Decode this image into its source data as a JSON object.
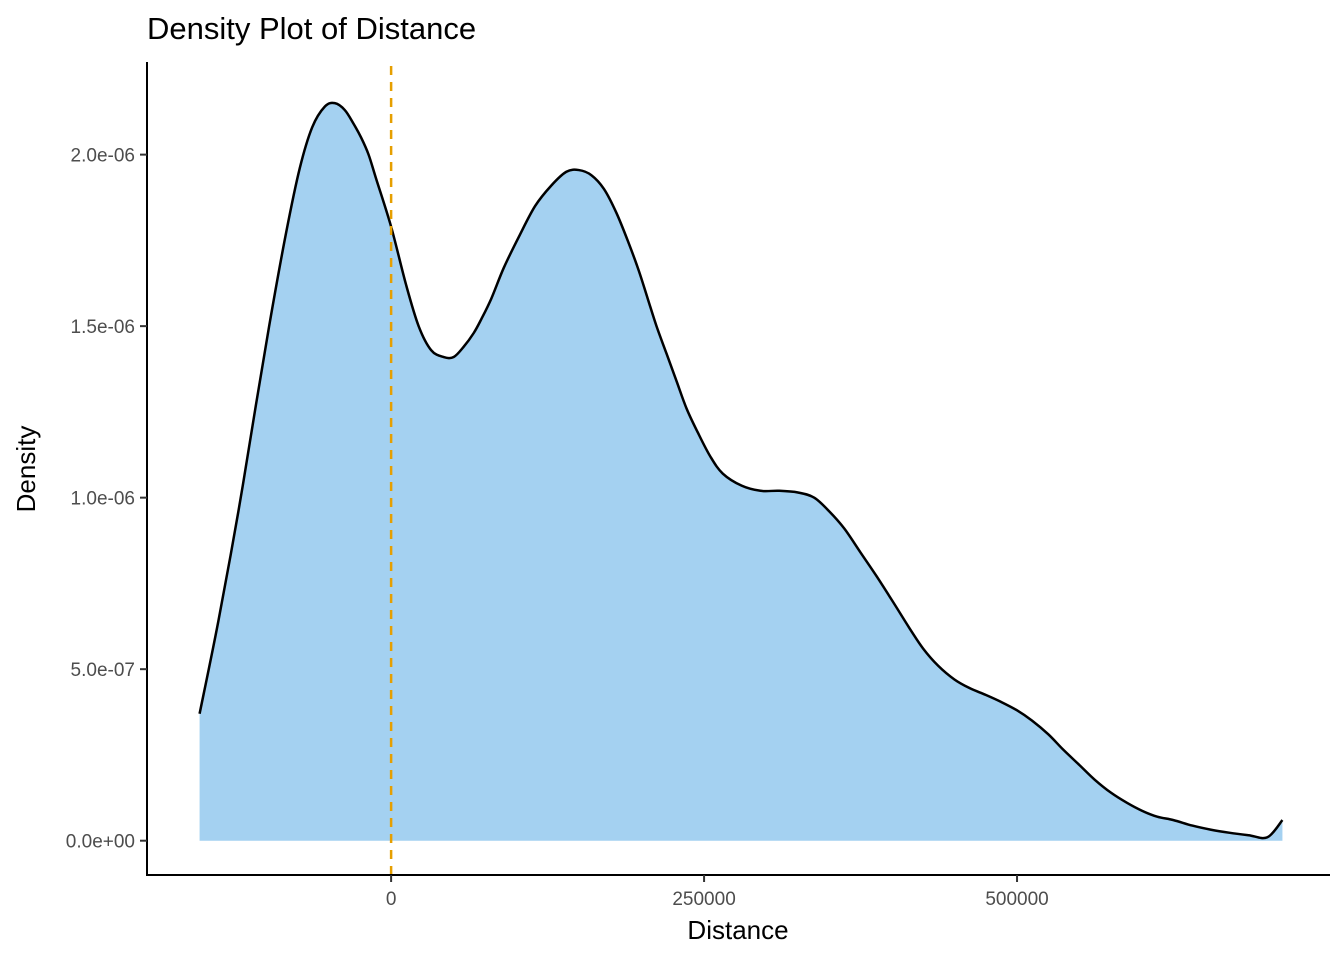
{
  "chart_data": {
    "type": "area",
    "title": "Density Plot of Distance",
    "xlabel": "Distance",
    "ylabel": "Density",
    "xlim": [
      -195000,
      750000
    ],
    "ylim": [
      -1e-07,
      2.27e-06
    ],
    "x_ticks": [
      0,
      250000,
      500000
    ],
    "x_tick_labels": [
      "0",
      "250000",
      "500000"
    ],
    "y_ticks": [
      0,
      5e-07,
      1e-06,
      1.5e-06,
      2e-06
    ],
    "y_tick_labels": [
      "0.0e+00",
      "5.0e-07",
      "1.0e-06",
      "1.5e-06",
      "2.0e-06"
    ],
    "grid": false,
    "series": [
      {
        "fill_color": "#a4d1f1",
        "line_color": "#000000",
        "x": [
          -153000,
          -138000,
          -122000,
          -108000,
          -96000,
          -84000,
          -73000,
          -63000,
          -53000,
          -45000,
          -37000,
          -30000,
          -24000,
          -18000,
          -12000,
          0,
          12000,
          22000,
          32000,
          42000,
          50000,
          58000,
          66000,
          72000,
          80000,
          90000,
          102000,
          115000,
          128000,
          140000,
          150000,
          160000,
          170000,
          180000,
          190000,
          198000,
          205000,
          212000,
          220000,
          228000,
          236000,
          245000,
          255000,
          265000,
          280000,
          295000,
          310000,
          325000,
          338000,
          350000,
          362000,
          375000,
          388000,
          402000,
          414000,
          425000,
          437000,
          450000,
          462000,
          475000,
          487000,
          500000,
          512000,
          525000,
          537000,
          550000,
          562000,
          575000,
          588000,
          600000,
          612000,
          625000,
          640000,
          655000,
          670000,
          685000,
          700000,
          712000
        ],
        "y": [
          3.7e-07,
          6.4e-07,
          9.6e-07,
          1.27e-06,
          1.53e-06,
          1.77e-06,
          1.96e-06,
          2.08e-06,
          2.14e-06,
          2.15e-06,
          2.13e-06,
          2.09e-06,
          2.05e-06,
          2e-06,
          1.93e-06,
          1.79e-06,
          1.62e-06,
          1.5e-06,
          1.43e-06,
          1.41e-06,
          1.41e-06,
          1.44e-06,
          1.48e-06,
          1.52e-06,
          1.58e-06,
          1.67e-06,
          1.76e-06,
          1.85e-06,
          1.91e-06,
          1.95e-06,
          1.955e-06,
          1.94e-06,
          1.9e-06,
          1.83e-06,
          1.74e-06,
          1.66e-06,
          1.58e-06,
          1.5e-06,
          1.42e-06,
          1.34e-06,
          1.26e-06,
          1.19e-06,
          1.12e-06,
          1.07e-06,
          1.035e-06,
          1.02e-06,
          1.02e-06,
          1.015e-06,
          1e-06,
          9.6e-07,
          9.1e-07,
          8.4e-07,
          7.7e-07,
          6.9e-07,
          6.2e-07,
          5.6e-07,
          5.1e-07,
          4.7e-07,
          4.45e-07,
          4.25e-07,
          4.05e-07,
          3.8e-07,
          3.5e-07,
          3.1e-07,
          2.65e-07,
          2.2e-07,
          1.78e-07,
          1.4e-07,
          1.1e-07,
          8.7e-08,
          7e-08,
          6e-08,
          4.4e-08,
          3.2e-08,
          2.3e-08,
          1.6e-08,
          1e-08,
          6e-08
        ]
      }
    ],
    "reference_line": {
      "x": 0,
      "orientation": "vertical",
      "style": "dashed",
      "color": "#e69f00"
    }
  }
}
